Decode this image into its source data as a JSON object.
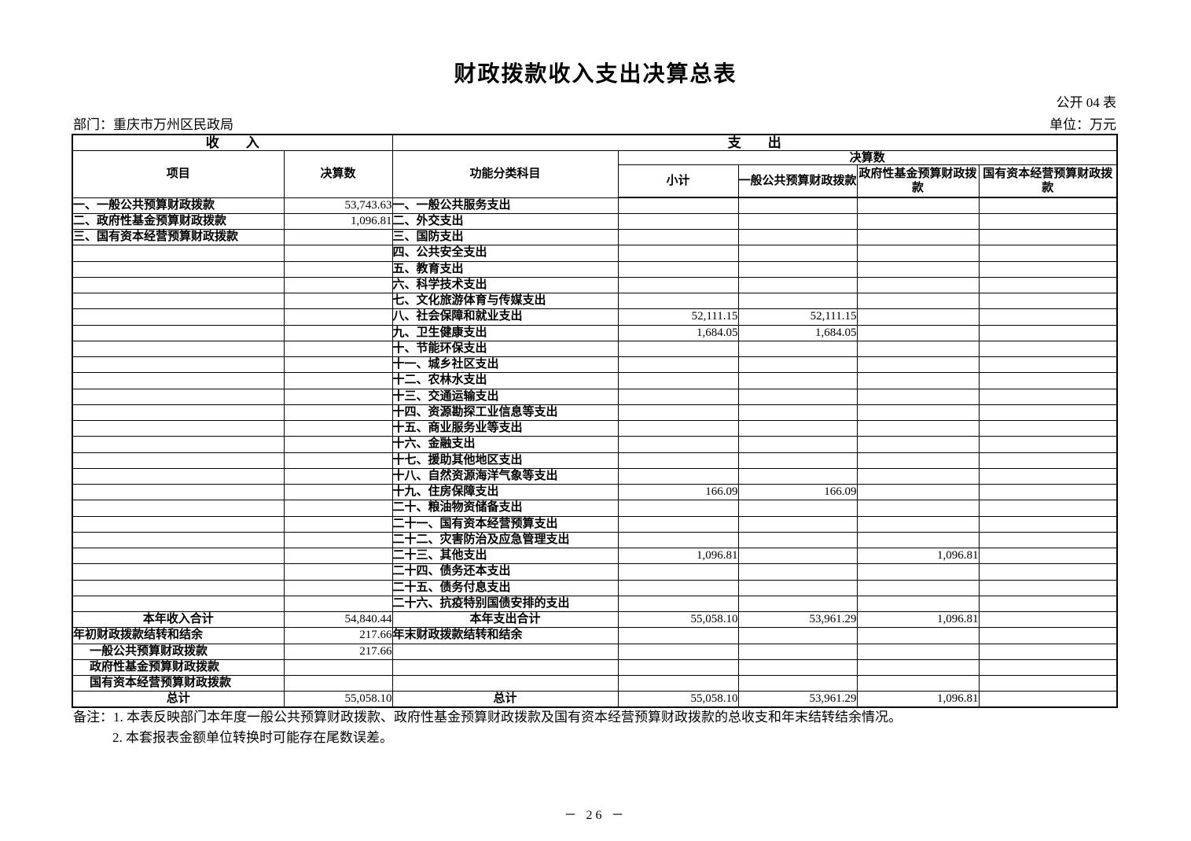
{
  "page": {
    "title": "财政拨款收入支出决算总表",
    "table_no": "公开 04 表",
    "department": "部门：重庆市万州区民政局",
    "unit": "单位：万元",
    "page_number": "－ 26 －"
  },
  "table": {
    "income_header": "收　　入",
    "expense_header": "支　　出",
    "columns": {
      "income_item": "项目",
      "income_amount": "决算数",
      "expense_subject": "功能分类科目",
      "expense_amount_group": "决算数",
      "subtotal": "小计",
      "general_public": "一般公共预算财政拨款",
      "govt_fund": "政府性基金预算财政拨款",
      "state_capital": "国有资本经营预算财政拨款"
    },
    "rows": [
      {
        "income_item": "一、一般公共预算财政拨款",
        "income_amount": "53,743.63",
        "expense_subject": "一、一般公共服务支出",
        "subtotal": "",
        "general_public": "",
        "govt_fund": "",
        "state_capital": ""
      },
      {
        "income_item": "二、政府性基金预算财政拨款",
        "income_amount": "1,096.81",
        "expense_subject": "二、外交支出",
        "subtotal": "",
        "general_public": "",
        "govt_fund": "",
        "state_capital": ""
      },
      {
        "income_item": "三、国有资本经营预算财政拨款",
        "income_amount": "",
        "expense_subject": "三、国防支出",
        "subtotal": "",
        "general_public": "",
        "govt_fund": "",
        "state_capital": ""
      },
      {
        "income_item": "",
        "income_amount": "",
        "expense_subject": "四、公共安全支出",
        "subtotal": "",
        "general_public": "",
        "govt_fund": "",
        "state_capital": ""
      },
      {
        "income_item": "",
        "income_amount": "",
        "expense_subject": "五、教育支出",
        "subtotal": "",
        "general_public": "",
        "govt_fund": "",
        "state_capital": ""
      },
      {
        "income_item": "",
        "income_amount": "",
        "expense_subject": "六、科学技术支出",
        "subtotal": "",
        "general_public": "",
        "govt_fund": "",
        "state_capital": ""
      },
      {
        "income_item": "",
        "income_amount": "",
        "expense_subject": "七、文化旅游体育与传媒支出",
        "subtotal": "",
        "general_public": "",
        "govt_fund": "",
        "state_capital": ""
      },
      {
        "income_item": "",
        "income_amount": "",
        "expense_subject": "八、社会保障和就业支出",
        "subtotal": "52,111.15",
        "general_public": "52,111.15",
        "govt_fund": "",
        "state_capital": ""
      },
      {
        "income_item": "",
        "income_amount": "",
        "expense_subject": "九、卫生健康支出",
        "subtotal": "1,684.05",
        "general_public": "1,684.05",
        "govt_fund": "",
        "state_capital": ""
      },
      {
        "income_item": "",
        "income_amount": "",
        "expense_subject": "十、节能环保支出",
        "subtotal": "",
        "general_public": "",
        "govt_fund": "",
        "state_capital": ""
      },
      {
        "income_item": "",
        "income_amount": "",
        "expense_subject": "十一、城乡社区支出",
        "subtotal": "",
        "general_public": "",
        "govt_fund": "",
        "state_capital": ""
      },
      {
        "income_item": "",
        "income_amount": "",
        "expense_subject": "十二、农林水支出",
        "subtotal": "",
        "general_public": "",
        "govt_fund": "",
        "state_capital": ""
      },
      {
        "income_item": "",
        "income_amount": "",
        "expense_subject": "十三、交通运输支出",
        "subtotal": "",
        "general_public": "",
        "govt_fund": "",
        "state_capital": ""
      },
      {
        "income_item": "",
        "income_amount": "",
        "expense_subject": "十四、资源勘探工业信息等支出",
        "subtotal": "",
        "general_public": "",
        "govt_fund": "",
        "state_capital": ""
      },
      {
        "income_item": "",
        "income_amount": "",
        "expense_subject": "十五、商业服务业等支出",
        "subtotal": "",
        "general_public": "",
        "govt_fund": "",
        "state_capital": ""
      },
      {
        "income_item": "",
        "income_amount": "",
        "expense_subject": "十六、金融支出",
        "subtotal": "",
        "general_public": "",
        "govt_fund": "",
        "state_capital": ""
      },
      {
        "income_item": "",
        "income_amount": "",
        "expense_subject": "十七、援助其他地区支出",
        "subtotal": "",
        "general_public": "",
        "govt_fund": "",
        "state_capital": ""
      },
      {
        "income_item": "",
        "income_amount": "",
        "expense_subject": "十八、自然资源海洋气象等支出",
        "subtotal": "",
        "general_public": "",
        "govt_fund": "",
        "state_capital": ""
      },
      {
        "income_item": "",
        "income_amount": "",
        "expense_subject": "十九、住房保障支出",
        "subtotal": "166.09",
        "general_public": "166.09",
        "govt_fund": "",
        "state_capital": ""
      },
      {
        "income_item": "",
        "income_amount": "",
        "expense_subject": "二十、粮油物资储备支出",
        "subtotal": "",
        "general_public": "",
        "govt_fund": "",
        "state_capital": ""
      },
      {
        "income_item": "",
        "income_amount": "",
        "expense_subject": "二十一、国有资本经营预算支出",
        "subtotal": "",
        "general_public": "",
        "govt_fund": "",
        "state_capital": ""
      },
      {
        "income_item": "",
        "income_amount": "",
        "expense_subject": "二十二、灾害防治及应急管理支出",
        "subtotal": "",
        "general_public": "",
        "govt_fund": "",
        "state_capital": ""
      },
      {
        "income_item": "",
        "income_amount": "",
        "expense_subject": "二十三、其他支出",
        "subtotal": "1,096.81",
        "general_public": "",
        "govt_fund": "1,096.81",
        "state_capital": ""
      },
      {
        "income_item": "",
        "income_amount": "",
        "expense_subject": "二十四、债务还本支出",
        "subtotal": "",
        "general_public": "",
        "govt_fund": "",
        "state_capital": ""
      },
      {
        "income_item": "",
        "income_amount": "",
        "expense_subject": "二十五、债务付息支出",
        "subtotal": "",
        "general_public": "",
        "govt_fund": "",
        "state_capital": ""
      },
      {
        "income_item": "",
        "income_amount": "",
        "expense_subject": "二十六、抗疫特别国债安排的支出",
        "subtotal": "",
        "general_public": "",
        "govt_fund": "",
        "state_capital": ""
      },
      {
        "income_item": "本年收入合计",
        "income_style": "center",
        "income_amount": "54,840.44",
        "expense_subject": "本年支出合计",
        "expense_style": "center",
        "subtotal": "55,058.10",
        "general_public": "53,961.29",
        "govt_fund": "1,096.81",
        "state_capital": ""
      },
      {
        "income_item": "年初财政拨款结转和结余",
        "income_amount": "217.66",
        "expense_subject": "年末财政拨款结转和结余",
        "subtotal": "",
        "general_public": "",
        "govt_fund": "",
        "state_capital": ""
      },
      {
        "income_item": "一般公共预算财政拨款",
        "income_style": "indent",
        "income_amount": "217.66",
        "expense_subject": "",
        "subtotal": "",
        "general_public": "",
        "govt_fund": "",
        "state_capital": ""
      },
      {
        "income_item": "政府性基金预算财政拨款",
        "income_style": "indent",
        "income_amount": "",
        "expense_subject": "",
        "subtotal": "",
        "general_public": "",
        "govt_fund": "",
        "state_capital": ""
      },
      {
        "income_item": "国有资本经营预算财政拨款",
        "income_style": "indent",
        "income_amount": "",
        "expense_subject": "",
        "subtotal": "",
        "general_public": "",
        "govt_fund": "",
        "state_capital": ""
      },
      {
        "income_item": "总计",
        "income_style": "center",
        "income_amount": "55,058.10",
        "expense_subject": "总计",
        "expense_style": "center",
        "subtotal": "55,058.10",
        "general_public": "53,961.29",
        "govt_fund": "1,096.81",
        "state_capital": ""
      }
    ]
  },
  "notes": {
    "label": "备注：",
    "line1": "1. 本表反映部门本年度一般公共预算财政拨款、政府性基金预算财政拨款及国有资本经营预算财政拨款的总收支和年末结转结余情况。",
    "line2": "2. 本套报表金额单位转换时可能存在尾数误差。"
  }
}
